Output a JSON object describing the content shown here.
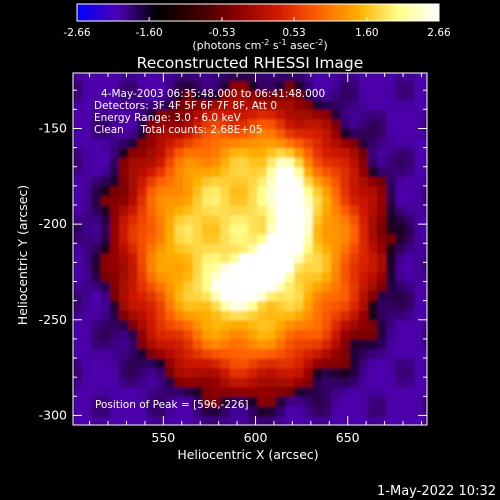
{
  "chart_data": {
    "type": "heatmap",
    "title": "Reconstructed RHESSI Image",
    "xlabel": "Heliocentric X (arcsec)",
    "ylabel": "Heliocentric Y (arcsec)",
    "xlim": [
      501,
      693
    ],
    "ylim": [
      -305,
      -121
    ],
    "x_ticks": [
      550,
      600,
      650
    ],
    "y_ticks": [
      -150,
      -200,
      -250,
      -300
    ],
    "colorbar": {
      "colormap": "fire",
      "range": [
        -2.66,
        2.66
      ],
      "ticks": [
        "-2.66",
        "-1.60",
        "-0.53",
        "0.53",
        "1.60",
        "2.66"
      ],
      "stops": [
        "#0000ff",
        "#4b00b4",
        "#000000",
        "#3c0000",
        "#8a0000",
        "#d21a00",
        "#ff6000",
        "#ffb000",
        "#ffff8c",
        "#ffffff"
      ],
      "label_parts": [
        "(photons cm",
        "-2",
        " s",
        "-1",
        " asec",
        "-2",
        ")"
      ]
    },
    "annotations": [
      "4-May-2003 06:35:48.000 to 06:41:48.000",
      "Detectors: 3F 4F 5F 6F 7F 8F, Att 0",
      "Energy Range: 3.0 - 6.0 keV",
      "Clean     Total counts: 2.68E+05"
    ],
    "peak_label": "Position of Peak = [596,-226]",
    "peak": [
      596,
      -226
    ],
    "sources": [
      {
        "shape": "ellipse",
        "center": [
          596,
          -210
        ],
        "sigma": [
          68,
          72
        ],
        "amplitude": 1.3
      },
      {
        "shape": "arc",
        "center": [
          578,
          -192
        ],
        "radius": 42,
        "arc_from_deg": -85,
        "arc_to_deg": 40,
        "width": 9,
        "amplitude": 1.35
      },
      {
        "shape": "ellipse",
        "center": [
          596,
          -226
        ],
        "sigma": [
          12,
          9
        ],
        "amplitude": 0.5
      }
    ]
  },
  "footer": {
    "timestamp": "1-May-2022 10:32"
  }
}
